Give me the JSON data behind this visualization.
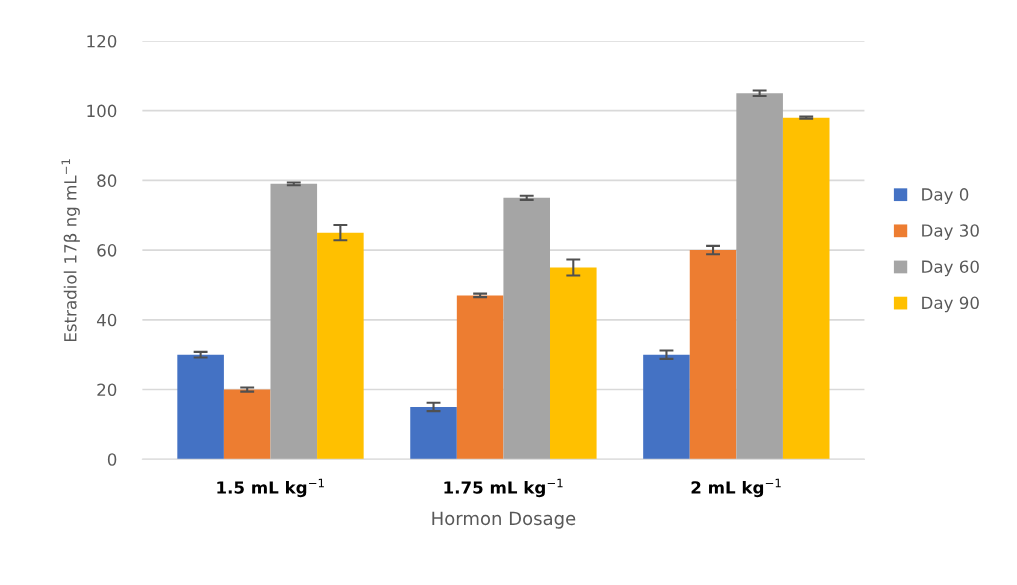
{
  "chart_data": {
    "type": "bar",
    "xlabel": "Hormon Dosage",
    "ylabel": "Estradiol 17β ng mL$^{−1}$",
    "categories": [
      "1.5 mL kg$^{−1}$",
      "1.75 mL kg$^{−1}$",
      "2 mL kg$^{−1}$"
    ],
    "series": [
      {
        "name": "Day 0",
        "color": "#4472c4",
        "values": [
          30,
          15,
          30
        ],
        "errors": [
          0.8,
          1.2,
          1.2
        ]
      },
      {
        "name": "Day 30",
        "color": "#ed7d31",
        "values": [
          20,
          47,
          60
        ],
        "errors": [
          0.6,
          0.5,
          1.2
        ]
      },
      {
        "name": "Day 60",
        "color": "#a5a5a5",
        "values": [
          79,
          75,
          105
        ],
        "errors": [
          0.4,
          0.6,
          0.8
        ]
      },
      {
        "name": "Day 90",
        "color": "#ffc000",
        "values": [
          65,
          55,
          98
        ],
        "errors": [
          2.2,
          2.3,
          0.3
        ]
      }
    ],
    "ylim": [
      0,
      120
    ],
    "yticks": [
      0,
      20,
      40,
      60,
      80,
      100,
      120
    ],
    "grid": "y",
    "legend": "right"
  }
}
